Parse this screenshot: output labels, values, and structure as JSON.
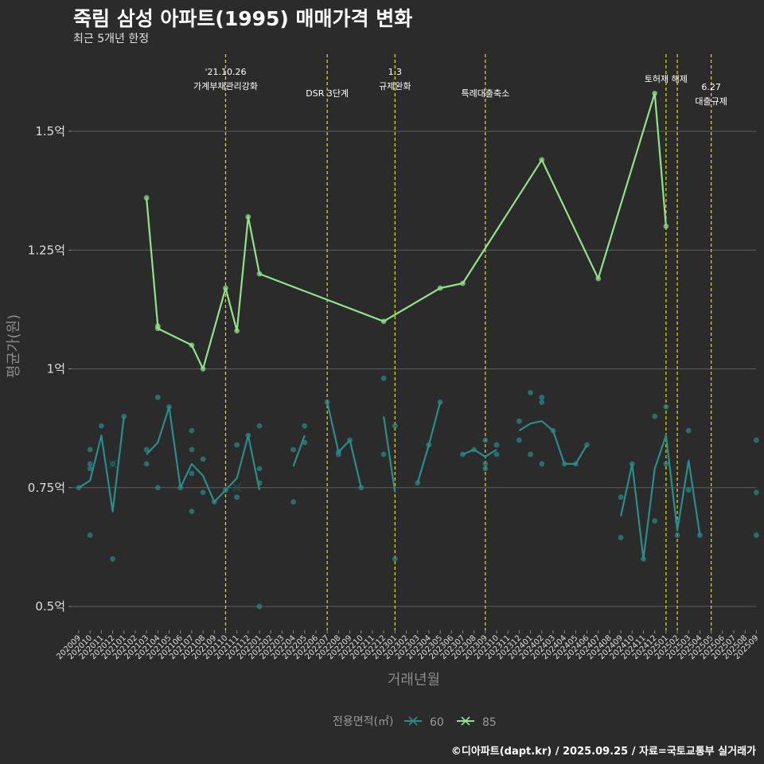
{
  "page": {
    "title": "죽림 삼성 아파트(1995) 매매가격 변화",
    "subtitle": "최근 5개년 한정",
    "credit": "©디아파트(dapt.kr) / 2025.09.25 / 자료=국토교통부 실거래가"
  },
  "chart_data": {
    "type": "line",
    "title": "죽림 삼성 아파트(1995) 매매가격 변화",
    "subtitle": "최근 5개년 한정",
    "xlabel": "거래년월",
    "ylabel": "평균가(원)",
    "ylim": [
      0.45,
      1.67
    ],
    "yticks": [
      {
        "value": 0.5,
        "label": "0.5억"
      },
      {
        "value": 0.75,
        "label": "0.75억"
      },
      {
        "value": 1.0,
        "label": "1억"
      },
      {
        "value": 1.25,
        "label": "1.25억"
      },
      {
        "value": 1.5,
        "label": "1.5억"
      }
    ],
    "categories": [
      "202009",
      "202010",
      "202011",
      "202012",
      "202101",
      "202102",
      "202103",
      "202104",
      "202105",
      "202106",
      "202107",
      "202108",
      "202109",
      "202110",
      "202111",
      "202112",
      "202201",
      "202202",
      "202203",
      "202204",
      "202205",
      "202206",
      "202207",
      "202208",
      "202209",
      "202210",
      "202211",
      "202212",
      "202301",
      "202302",
      "202303",
      "202304",
      "202305",
      "202306",
      "202307",
      "202308",
      "202309",
      "202310",
      "202311",
      "202312",
      "202401",
      "202402",
      "202403",
      "202404",
      "202405",
      "202406",
      "202407",
      "202408",
      "202409",
      "202410",
      "202411",
      "202412",
      "202501",
      "202502",
      "202503",
      "202504",
      "202505",
      "202506",
      "202507",
      "202508",
      "202509"
    ],
    "legend": {
      "title": "전용면적(㎡)",
      "position": "bottom"
    },
    "series": [
      {
        "name": "60",
        "color": "#2a8c8c",
        "line": [
          [
            [
              0,
              0.75
            ],
            [
              1,
              0.765
            ],
            [
              2,
              0.86
            ],
            [
              3,
              0.7
            ],
            [
              4,
              0.9
            ]
          ],
          [
            [
              6,
              0.82
            ],
            [
              7,
              0.845
            ],
            [
              8,
              0.92
            ],
            [
              9,
              0.75
            ],
            [
              10,
              0.8
            ],
            [
              11,
              0.775
            ],
            [
              12,
              0.72
            ],
            [
              13,
              0.745
            ],
            [
              14,
              0.77
            ],
            [
              15,
              0.86
            ],
            [
              16,
              0.745
            ]
          ],
          [
            [
              19,
              0.795
            ],
            [
              20,
              0.86
            ]
          ],
          [
            [
              22,
              0.93
            ],
            [
              23,
              0.825
            ],
            [
              24,
              0.85
            ],
            [
              25,
              0.75
            ]
          ],
          [
            [
              27,
              0.9
            ],
            [
              28,
              0.74
            ]
          ],
          [
            [
              30,
              0.76
            ],
            [
              31,
              0.84
            ],
            [
              32,
              0.93
            ]
          ],
          [
            [
              34,
              0.82
            ],
            [
              35,
              0.83
            ],
            [
              36,
              0.815
            ],
            [
              37,
              0.83
            ]
          ],
          [
            [
              39,
              0.87
            ],
            [
              40,
              0.885
            ],
            [
              41,
              0.89
            ],
            [
              42,
              0.87
            ],
            [
              43,
              0.8
            ],
            [
              44,
              0.8
            ],
            [
              45,
              0.84
            ]
          ],
          [
            [
              48,
              0.69
            ],
            [
              49,
              0.8
            ],
            [
              50,
              0.6
            ],
            [
              51,
              0.79
            ],
            [
              52,
              0.86
            ],
            [
              53,
              0.66
            ],
            [
              54,
              0.807
            ],
            [
              55,
              0.65
            ]
          ]
        ],
        "points": [
          [
            0,
            0.75
          ],
          [
            1,
            0.8
          ],
          [
            1,
            0.79
          ],
          [
            1,
            0.83
          ],
          [
            1,
            0.65
          ],
          [
            2,
            0.88
          ],
          [
            3,
            0.8
          ],
          [
            3,
            0.6
          ],
          [
            4,
            0.9
          ],
          [
            6,
            0.83
          ],
          [
            6,
            0.8
          ],
          [
            7,
            0.94
          ],
          [
            7,
            0.75
          ],
          [
            8,
            0.92
          ],
          [
            9,
            0.75
          ],
          [
            10,
            0.83
          ],
          [
            10,
            0.87
          ],
          [
            10,
            0.7
          ],
          [
            10,
            0.78
          ],
          [
            11,
            0.81
          ],
          [
            11,
            0.74
          ],
          [
            12,
            0.72
          ],
          [
            13,
            0.745
          ],
          [
            14,
            0.84
          ],
          [
            14,
            0.73
          ],
          [
            15,
            0.86
          ],
          [
            16,
            0.88
          ],
          [
            16,
            0.79
          ],
          [
            16,
            0.76
          ],
          [
            16,
            0.5
          ],
          [
            19,
            0.83
          ],
          [
            19,
            0.72
          ],
          [
            20,
            0.88
          ],
          [
            20,
            0.845
          ],
          [
            22,
            0.93
          ],
          [
            23,
            0.82
          ],
          [
            23,
            0.825
          ],
          [
            24,
            0.85
          ],
          [
            25,
            0.75
          ],
          [
            27,
            0.98
          ],
          [
            27,
            0.82
          ],
          [
            28,
            0.88
          ],
          [
            28,
            0.6
          ],
          [
            30,
            0.76
          ],
          [
            31,
            0.84
          ],
          [
            32,
            0.93
          ],
          [
            34,
            0.82
          ],
          [
            35,
            0.83
          ],
          [
            36,
            0.85
          ],
          [
            36,
            0.8
          ],
          [
            36,
            0.79
          ],
          [
            37,
            0.84
          ],
          [
            37,
            0.82
          ],
          [
            39,
            0.89
          ],
          [
            39,
            0.85
          ],
          [
            40,
            0.95
          ],
          [
            40,
            0.82
          ],
          [
            41,
            0.94
          ],
          [
            41,
            0.93
          ],
          [
            41,
            0.8
          ],
          [
            42,
            0.87
          ],
          [
            43,
            0.8
          ],
          [
            44,
            0.8
          ],
          [
            45,
            0.84
          ],
          [
            48,
            0.73
          ],
          [
            48,
            0.645
          ],
          [
            49,
            0.8
          ],
          [
            50,
            0.6
          ],
          [
            51,
            0.9
          ],
          [
            51,
            0.68
          ],
          [
            52,
            0.92
          ],
          [
            52,
            0.8
          ],
          [
            53,
            0.68
          ],
          [
            53,
            0.65
          ],
          [
            54,
            0.87
          ],
          [
            54,
            0.745
          ],
          [
            55,
            0.65
          ],
          [
            60,
            0.85
          ],
          [
            60,
            0.74
          ],
          [
            60,
            0.65
          ]
        ],
        "cross_points": [
          [
            3,
            0.8
          ],
          [
            14,
            0.75
          ]
        ]
      },
      {
        "name": "85",
        "color": "#8fe388",
        "line": [
          [
            [
              6,
              1.36
            ],
            [
              7,
              1.09
            ],
            [
              7,
              1.085
            ],
            [
              10,
              1.05
            ],
            [
              11,
              1.0
            ],
            [
              13,
              1.17
            ],
            [
              14,
              1.08
            ],
            [
              15,
              1.32
            ],
            [
              16,
              1.2
            ],
            [
              27,
              1.1
            ],
            [
              32,
              1.17
            ],
            [
              34,
              1.18
            ],
            [
              41,
              1.44
            ],
            [
              46,
              1.19
            ],
            [
              51,
              1.58
            ],
            [
              52,
              1.3
            ]
          ]
        ],
        "points": [
          [
            6,
            1.36
          ],
          [
            7,
            1.09
          ],
          [
            7,
            1.085
          ],
          [
            10,
            1.05
          ],
          [
            11,
            1.0
          ],
          [
            13,
            1.17
          ],
          [
            14,
            1.08
          ],
          [
            15,
            1.32
          ],
          [
            16,
            1.2
          ],
          [
            27,
            1.1
          ],
          [
            32,
            1.17
          ],
          [
            34,
            1.18
          ],
          [
            41,
            1.44
          ],
          [
            46,
            1.19
          ],
          [
            51,
            1.58
          ],
          [
            52,
            1.3
          ]
        ],
        "cross_points": []
      }
    ],
    "events": [
      {
        "index": 13,
        "lines": [
          "'21.10.26",
          "가계부채관리강화"
        ]
      },
      {
        "index": 22,
        "lines": [
          "DSR 3단계"
        ]
      },
      {
        "index": 28,
        "lines": [
          "1.3",
          "규제완화"
        ]
      },
      {
        "index": 36,
        "lines": [
          "특례대출축소"
        ]
      },
      {
        "index": 52,
        "lines": [
          "토허제 해제"
        ]
      },
      {
        "index": 53,
        "lines": []
      },
      {
        "index": 56,
        "lines": [
          "6.27",
          "대출규제"
        ]
      }
    ]
  }
}
